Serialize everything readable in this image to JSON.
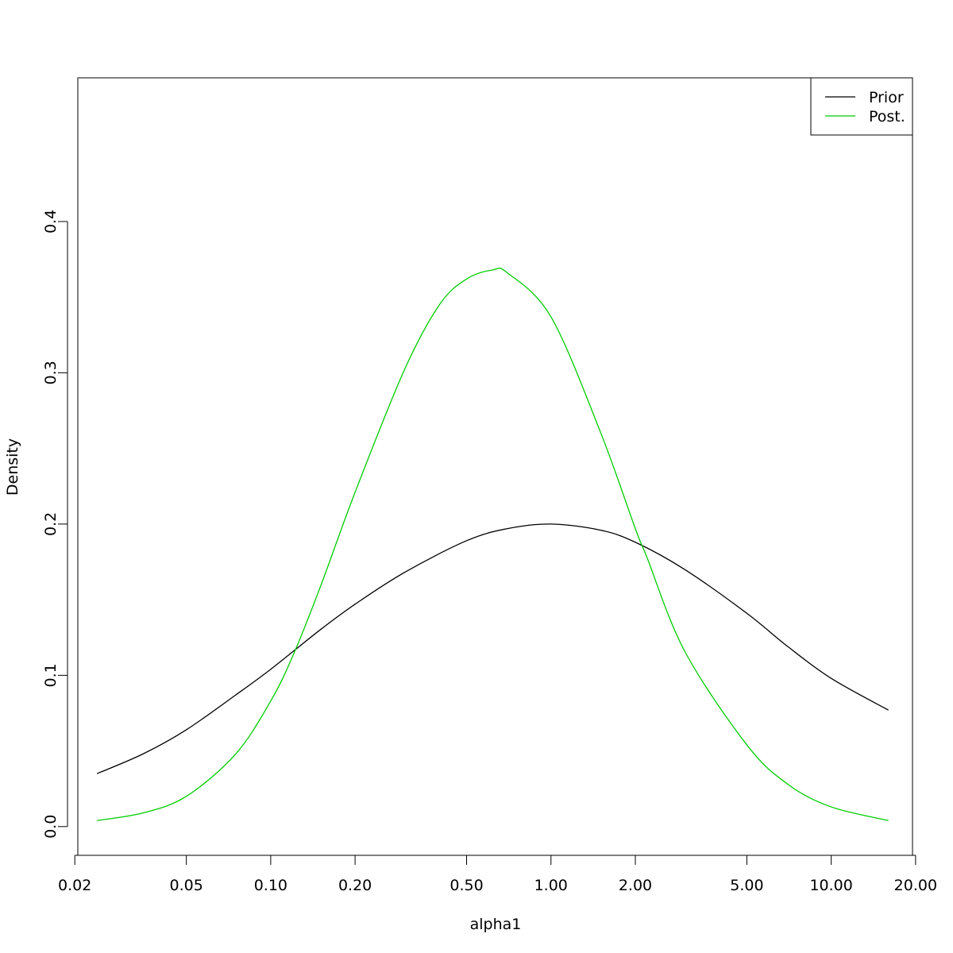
{
  "chart_data": {
    "type": "line",
    "title": "",
    "xlabel": "alpha1",
    "ylabel": "Density",
    "x_scale": "log",
    "xlim": [
      0.0205,
      19.5
    ],
    "ylim": [
      -0.019,
      0.495
    ],
    "x_ticks": [
      0.02,
      0.05,
      0.1,
      0.2,
      0.5,
      1,
      2,
      5,
      10,
      20
    ],
    "x_tick_labels": [
      "0.02",
      "0.05",
      "0.10",
      "0.20",
      "0.50",
      "1.00",
      "2.00",
      "5.00",
      "10.00",
      "20.00"
    ],
    "y_ticks": [
      0,
      0.1,
      0.2,
      0.3,
      0.4
    ],
    "y_tick_labels": [
      "0.0",
      "0.1",
      "0.2",
      "0.3",
      "0.4"
    ],
    "grid": false,
    "legend_position": "top-right",
    "series": [
      {
        "name": "Prior",
        "color": "#000000",
        "x": [
          0.024,
          0.035,
          0.05,
          0.075,
          0.1,
          0.15,
          0.2,
          0.3,
          0.5,
          0.7,
          1.0,
          1.5,
          2.0,
          3.0,
          5.0,
          7.0,
          10.0,
          16.0
        ],
        "y": [
          0.035,
          0.048,
          0.064,
          0.087,
          0.104,
          0.13,
          0.147,
          0.168,
          0.189,
          0.197,
          0.2,
          0.196,
          0.188,
          0.17,
          0.141,
          0.119,
          0.098,
          0.077
        ]
      },
      {
        "name": "Post.",
        "color": "#00cc00",
        "x": [
          0.024,
          0.035,
          0.05,
          0.075,
          0.1,
          0.12,
          0.15,
          0.2,
          0.3,
          0.4,
          0.5,
          0.62,
          0.7,
          1.0,
          1.5,
          2.0,
          2.2,
          3.0,
          5.0,
          7.0,
          10.0,
          16.0
        ],
        "y": [
          0.004,
          0.009,
          0.02,
          0.048,
          0.083,
          0.113,
          0.158,
          0.221,
          0.302,
          0.345,
          0.362,
          0.368,
          0.366,
          0.337,
          0.261,
          0.197,
          0.178,
          0.116,
          0.054,
          0.028,
          0.013,
          0.004
        ]
      }
    ]
  }
}
